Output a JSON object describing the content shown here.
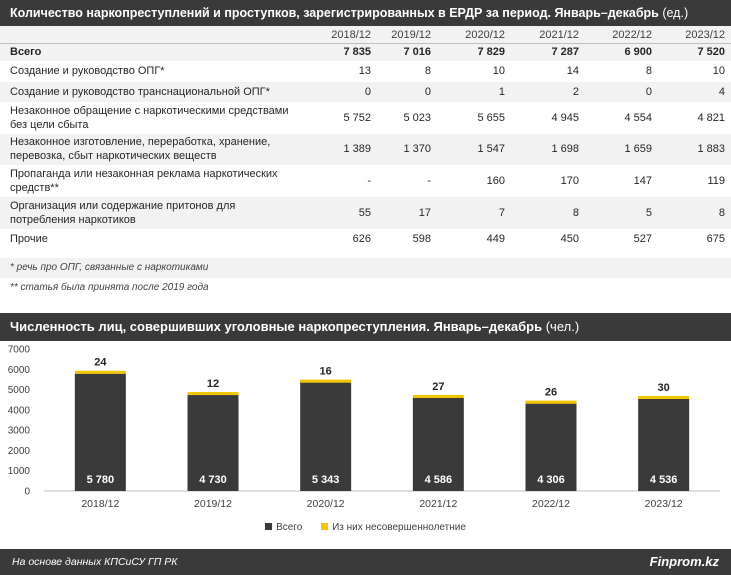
{
  "table_title": "Количество наркопреступлений и проступков, зарегистрированных в ЕРДР за период. Январь–декабрь",
  "table_unit": "(ед.)",
  "columns": [
    "2018/12",
    "2019/12",
    "2020/12",
    "2021/12",
    "2022/12",
    "2023/12"
  ],
  "rows": [
    {
      "label": "Всего",
      "values": [
        "7 835",
        "7 016",
        "7 829",
        "7 287",
        "6 900",
        "7 520"
      ]
    },
    {
      "label": "Создание и руководство ОПГ*",
      "values": [
        "13",
        "8",
        "10",
        "14",
        "8",
        "10"
      ]
    },
    {
      "label": "Создание и руководство транснациональной ОПГ*",
      "values": [
        "0",
        "0",
        "1",
        "2",
        "0",
        "4"
      ]
    },
    {
      "label": "Незаконное обращение с наркотическими средствами без цели сбыта",
      "values": [
        "5 752",
        "5 023",
        "5 655",
        "4 945",
        "4 554",
        "4 821"
      ]
    },
    {
      "label": "Незаконное изготовление, переработка, хранение, перевозка, сбыт наркотических веществ",
      "values": [
        "1 389",
        "1 370",
        "1 547",
        "1 698",
        "1 659",
        "1 883"
      ]
    },
    {
      "label": "Пропаганда или незаконная реклама наркотических средств**",
      "values": [
        "-",
        "-",
        "160",
        "170",
        "147",
        "119"
      ]
    },
    {
      "label": "Организация или содержание притонов для потребления наркотиков",
      "values": [
        "55",
        "17",
        "7",
        "8",
        "5",
        "8"
      ]
    },
    {
      "label": "Прочие",
      "values": [
        "626",
        "598",
        "449",
        "450",
        "527",
        "675"
      ]
    }
  ],
  "footnote1": "* речь про ОПГ, связанные с наркотиками",
  "footnote2": "** статья была принята после 2019 года",
  "chart_title": "Численность лиц, совершивших уголовные наркопреступления. Январь–декабрь",
  "chart_unit": "(чел.)",
  "colors": {
    "total": "#3a3a3a",
    "minors": "#f2c500",
    "header": "#3a3a3a"
  },
  "chart_data": {
    "type": "bar",
    "stacked": true,
    "categories": [
      "2018/12",
      "2019/12",
      "2020/12",
      "2021/12",
      "2022/12",
      "2023/12"
    ],
    "series": [
      {
        "name": "Всего",
        "values": [
          5780,
          4730,
          5343,
          4586,
          4306,
          4536
        ]
      },
      {
        "name": "Из них несовершеннолетние",
        "values": [
          24,
          12,
          16,
          27,
          26,
          30
        ]
      }
    ],
    "value_labels": [
      "5 780",
      "4 730",
      "5 343",
      "4 586",
      "4 306",
      "4 536"
    ],
    "ylim": [
      0,
      7000
    ],
    "yticks": [
      0,
      1000,
      2000,
      3000,
      4000,
      5000,
      6000,
      7000
    ],
    "grid": false,
    "legend": "bottom"
  },
  "footer_source": "На основе данных КПСиСУ ГП РК",
  "footer_brand": "Finprom.kz"
}
